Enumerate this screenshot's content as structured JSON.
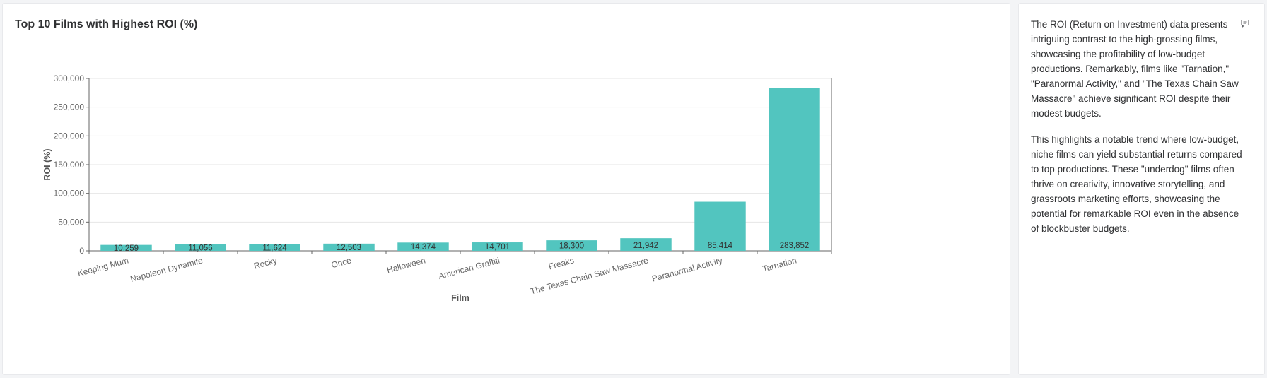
{
  "chart_data": {
    "type": "bar",
    "title": "Top 10 Films with Highest ROI (%)",
    "xlabel": "Film",
    "ylabel": "ROI (%)",
    "categories": [
      "Keeping Mum",
      "Napoleon Dynamite",
      "Rocky",
      "Once",
      "Halloween",
      "American Graffiti",
      "Freaks",
      "The Texas Chain Saw Massacre",
      "Paranormal Activity",
      "Tarnation"
    ],
    "values": [
      10259,
      11056,
      11624,
      12503,
      14374,
      14701,
      18300,
      21942,
      85414,
      283852
    ],
    "data_labels": [
      "10,259",
      "11,056",
      "11,624",
      "12,503",
      "14,374",
      "14,701",
      "18,300",
      "21,942",
      "85,414",
      "283,852"
    ],
    "ylim": [
      0,
      300000
    ],
    "yticks": [
      0,
      50000,
      100000,
      150000,
      200000,
      250000,
      300000
    ],
    "ytick_labels": [
      "0",
      "50,000",
      "100,000",
      "150,000",
      "200,000",
      "250,000",
      "300,000"
    ],
    "bar_color": "#52c5bf",
    "grid": true
  },
  "insight": {
    "paragraphs": [
      "The ROI (Return on Investment) data presents intriguing contrast to the high-grossing films, showcasing the profitability of low-budget productions. Remarkably, films like \"Tarnation,\" \"Paranormal Activity,\" and \"The Texas Chain Saw Massacre\" achieve significant ROI despite their modest budgets.",
      "This highlights a notable trend where low-budget, niche films can yield substantial returns compared to top productions. These \"underdog\" films often thrive on creativity, innovative storytelling, and grassroots marketing efforts, showcasing the potential for remarkable ROI even in the absence of blockbuster budgets."
    ],
    "icon": "comment-icon"
  }
}
